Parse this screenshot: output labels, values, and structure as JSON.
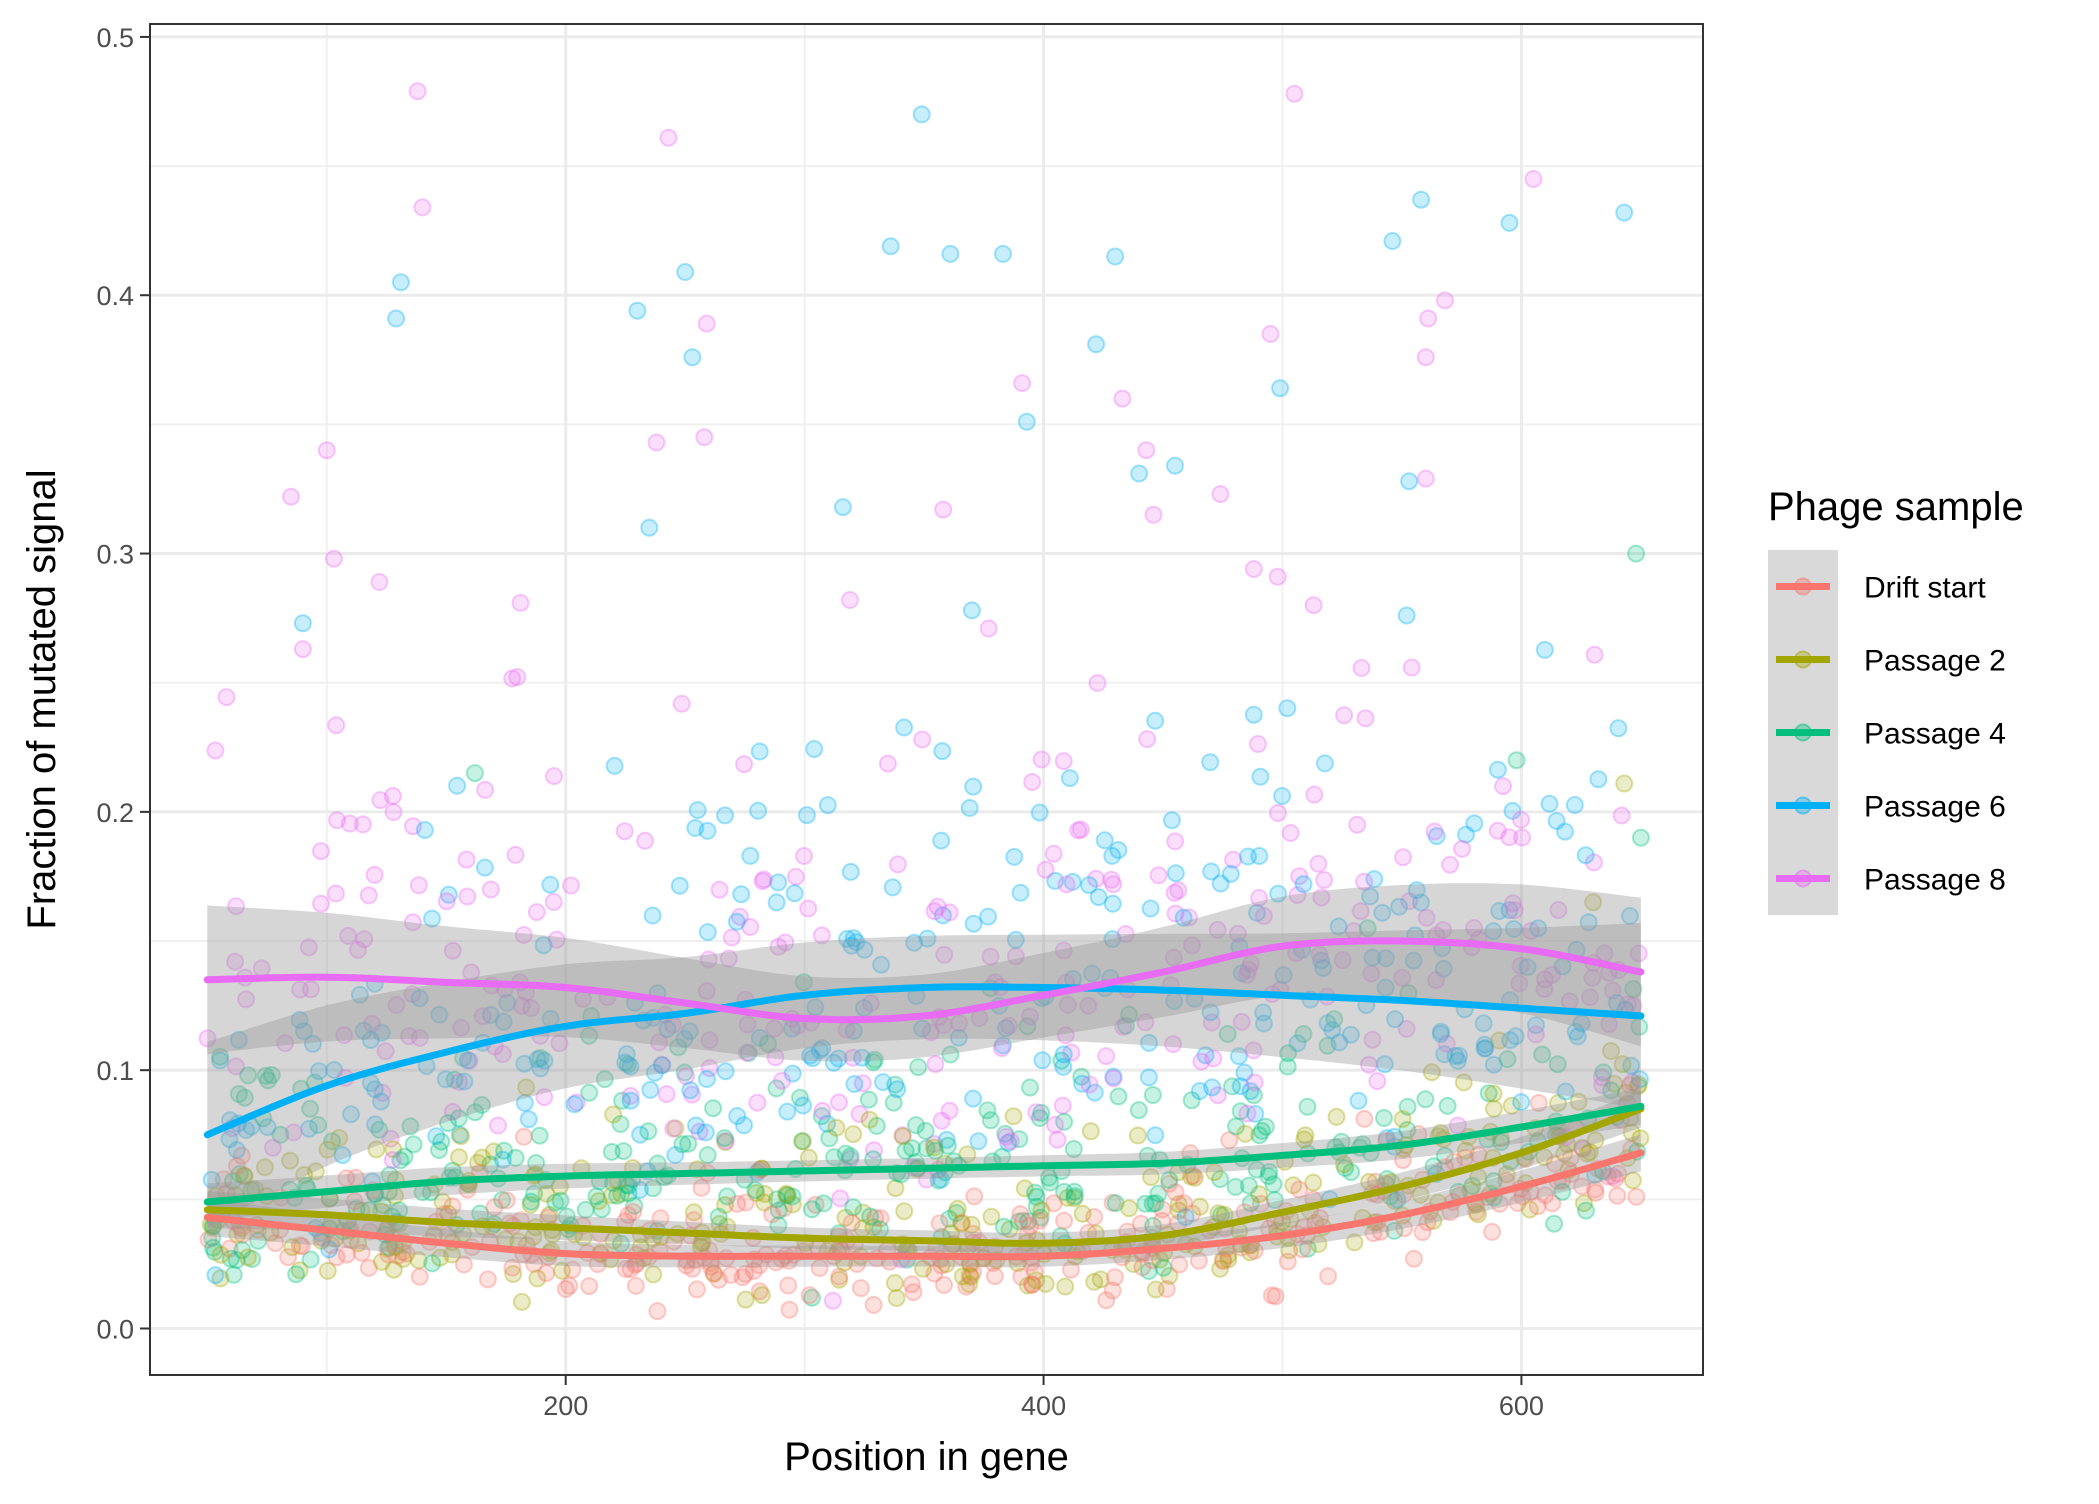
{
  "chart_data": {
    "type": "scatter",
    "xlabel": "Position in gene",
    "ylabel": "Fraction of mutated signal",
    "xlim": [
      26,
      676
    ],
    "ylim": [
      -0.018,
      0.505
    ],
    "x_ticks": [
      200,
      400,
      600
    ],
    "x_tick_labels": [
      "200",
      "400",
      "600"
    ],
    "y_ticks": [
      0.0,
      0.1,
      0.2,
      0.3,
      0.4,
      0.5
    ],
    "y_tick_labels": [
      "0.0",
      "0.1",
      "0.2",
      "0.3",
      "0.4",
      "0.5"
    ],
    "x_range_points": [
      50,
      650
    ],
    "grid": true,
    "theme": "black-and-white",
    "point_alpha": 0.25,
    "legend": {
      "title": "Phage sample",
      "placement": "right",
      "entries": [
        "Drift start",
        "Passage 2",
        "Passage 4",
        "Passage 6",
        "Passage 8"
      ]
    },
    "smooth": {
      "method": "loess",
      "confidence_band": true,
      "band_color": "#999999"
    },
    "series": [
      {
        "name": "Drift start",
        "color": "#F8766D",
        "smooth": {
          "x": [
            50,
            100,
            150,
            200,
            250,
            300,
            350,
            400,
            450,
            500,
            550,
            600,
            650
          ],
          "y": [
            0.043,
            0.038,
            0.033,
            0.029,
            0.028,
            0.028,
            0.028,
            0.028,
            0.031,
            0.036,
            0.044,
            0.055,
            0.068
          ],
          "band": 0.004
        },
        "points": {
          "n": 300,
          "y_typical": 0.03,
          "y_spread": 0.015,
          "outliers": []
        }
      },
      {
        "name": "Passage 2",
        "color": "#A3A500",
        "smooth": {
          "x": [
            50,
            100,
            150,
            200,
            250,
            300,
            350,
            400,
            450,
            500,
            550,
            600,
            650
          ],
          "y": [
            0.046,
            0.044,
            0.041,
            0.039,
            0.037,
            0.035,
            0.034,
            0.033,
            0.036,
            0.045,
            0.055,
            0.068,
            0.085
          ],
          "band": 0.004
        },
        "points": {
          "n": 300,
          "y_typical": 0.04,
          "y_spread": 0.02,
          "outliers": [
            [
              643,
              0.211
            ],
            [
              630,
              0.165
            ]
          ]
        }
      },
      {
        "name": "Passage 4",
        "color": "#00BF7D",
        "smooth": {
          "x": [
            50,
            100,
            150,
            200,
            250,
            300,
            350,
            400,
            450,
            500,
            550,
            600,
            650
          ],
          "y": [
            0.049,
            0.053,
            0.057,
            0.059,
            0.06,
            0.061,
            0.062,
            0.063,
            0.064,
            0.067,
            0.071,
            0.078,
            0.086
          ],
          "band": 0.004
        },
        "points": {
          "n": 300,
          "y_typical": 0.06,
          "y_spread": 0.03,
          "outliers": [
            [
              648,
              0.3
            ],
            [
              598,
              0.22
            ],
            [
              162,
              0.215
            ],
            [
              650,
              0.19
            ]
          ]
        }
      },
      {
        "name": "Passage 6",
        "color": "#00B0F6",
        "smooth": {
          "x": [
            50,
            100,
            150,
            200,
            250,
            300,
            350,
            400,
            450,
            500,
            550,
            600,
            650
          ],
          "y": [
            0.075,
            0.094,
            0.107,
            0.117,
            0.122,
            0.129,
            0.132,
            0.132,
            0.131,
            0.129,
            0.127,
            0.124,
            0.121
          ],
          "band": 0.02
        },
        "points": {
          "n": 300,
          "y_typical": 0.11,
          "y_spread": 0.05,
          "outliers": [
            [
              349,
              0.47
            ],
            [
              558,
              0.437
            ],
            [
              643,
              0.432
            ],
            [
              595,
              0.428
            ],
            [
              546,
              0.421
            ],
            [
              336,
              0.419
            ],
            [
              361,
              0.416
            ],
            [
              383,
              0.416
            ],
            [
              430,
              0.415
            ],
            [
              250,
              0.409
            ],
            [
              131,
              0.405
            ],
            [
              230,
              0.394
            ],
            [
              129,
              0.391
            ],
            [
              422,
              0.381
            ],
            [
              253,
              0.376
            ],
            [
              499,
              0.364
            ],
            [
              393,
              0.351
            ],
            [
              455,
              0.334
            ],
            [
              440,
              0.331
            ],
            [
              553,
              0.328
            ],
            [
              316,
              0.318
            ],
            [
              235,
              0.31
            ],
            [
              90,
              0.273
            ],
            [
              370,
              0.278
            ],
            [
              552,
              0.276
            ]
          ]
        }
      },
      {
        "name": "Passage 8",
        "color": "#E76BF3",
        "smooth": {
          "x": [
            50,
            100,
            150,
            200,
            250,
            300,
            350,
            400,
            450,
            500,
            550,
            600,
            650
          ],
          "y": [
            0.135,
            0.136,
            0.134,
            0.132,
            0.126,
            0.12,
            0.121,
            0.129,
            0.138,
            0.148,
            0.15,
            0.147,
            0.138
          ],
          "band": 0.016
        },
        "points": {
          "n": 300,
          "y_typical": 0.14,
          "y_spread": 0.06,
          "outliers": [
            [
              138,
              0.479
            ],
            [
              505,
              0.478
            ],
            [
              243,
              0.461
            ],
            [
              605,
              0.445
            ],
            [
              140,
              0.434
            ],
            [
              568,
              0.398
            ],
            [
              259,
              0.389
            ],
            [
              561,
              0.391
            ],
            [
              495,
              0.385
            ],
            [
              391,
              0.366
            ],
            [
              560,
              0.376
            ],
            [
              238,
              0.343
            ],
            [
              100,
              0.34
            ],
            [
              258,
              0.345
            ],
            [
              433,
              0.36
            ],
            [
              443,
              0.34
            ],
            [
              560,
              0.329
            ],
            [
              474,
              0.323
            ],
            [
              85,
              0.322
            ],
            [
              358,
              0.317
            ],
            [
              446,
              0.315
            ],
            [
              103,
              0.298
            ],
            [
              488,
              0.294
            ],
            [
              498,
              0.291
            ],
            [
              122,
              0.289
            ],
            [
              319,
              0.282
            ],
            [
              513,
              0.28
            ],
            [
              90,
              0.263
            ],
            [
              377,
              0.271
            ]
          ]
        }
      }
    ]
  }
}
